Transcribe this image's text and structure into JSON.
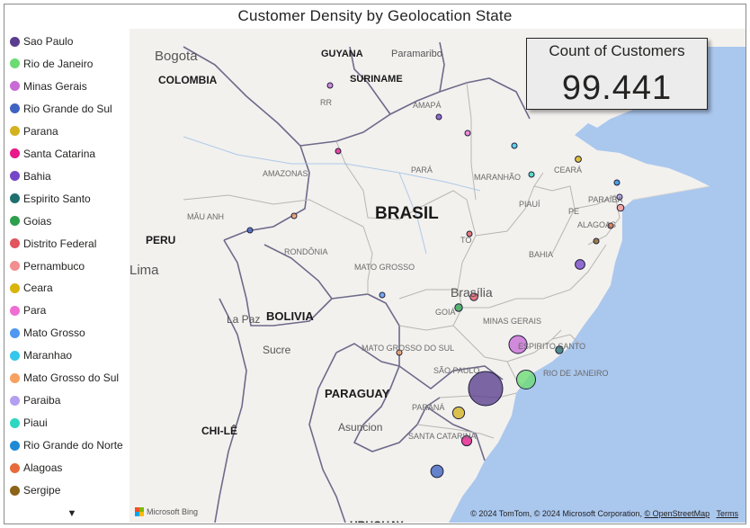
{
  "title": "Customer Density by Geolocation State",
  "kpi": {
    "label": "Count of Customers",
    "value": "99.441"
  },
  "legend": {
    "items": [
      {
        "label": "Sao Paulo",
        "color": "#5a3d8e"
      },
      {
        "label": "Rio de Janeiro",
        "color": "#6cdb73"
      },
      {
        "label": "Minas Gerais",
        "color": "#c86bd6"
      },
      {
        "label": "Rio Grande do Sul",
        "color": "#3e63c2"
      },
      {
        "label": "Parana",
        "color": "#d4b21f"
      },
      {
        "label": "Santa Catarina",
        "color": "#e8178a"
      },
      {
        "label": "Bahia",
        "color": "#7446c8"
      },
      {
        "label": "Espirito Santo",
        "color": "#1f6f6f"
      },
      {
        "label": "Goias",
        "color": "#2ca04c"
      },
      {
        "label": "Distrito Federal",
        "color": "#e2545e"
      },
      {
        "label": "Pernambuco",
        "color": "#f28e8e"
      },
      {
        "label": "Ceara",
        "color": "#d9b40a"
      },
      {
        "label": "Para",
        "color": "#ef6ed3"
      },
      {
        "label": "Mato Grosso",
        "color": "#4f97f0"
      },
      {
        "label": "Maranhao",
        "color": "#33c8eb"
      },
      {
        "label": "Mato Grosso do Sul",
        "color": "#f7a060"
      },
      {
        "label": "Paraiba",
        "color": "#b39ff0"
      },
      {
        "label": "Piaui",
        "color": "#2fd6c2"
      },
      {
        "label": "Rio Grande do Norte",
        "color": "#1e8ad6"
      },
      {
        "label": "Alagoas",
        "color": "#e86a3a"
      },
      {
        "label": "Sergipe",
        "color": "#8c6318"
      }
    ],
    "more_icon": "chevron-down-icon",
    "more_glyph": "▼"
  },
  "map_labels": {
    "countries": [
      "COLOMBIA",
      "GUYANA",
      "SURINAME",
      "BRASIL",
      "PERU",
      "BOLIVIA",
      "PARAGUAY",
      "CHI-LÊ",
      "URUGUAY"
    ],
    "cities": [
      "Bogota",
      "Paramaribo",
      "Brasília",
      "La Paz",
      "Sucre",
      "Asuncion",
      "Lima"
    ],
    "states": [
      "AMAPÁ",
      "RR",
      "AMAZONAS",
      "PARÁ",
      "MARANHÃO",
      "CEARÁ",
      "PIAUÍ",
      "PARAÍBA",
      "PE",
      "ALAGOAS",
      "MÂU ANH",
      "TO",
      "BAHIA",
      "RONDÔNIA",
      "MATO GROSSO",
      "GOIÁ",
      "MINAS GERAIS",
      "ESPIRITO SANTO",
      "RIO DE JANEIRO",
      "SÃO PAULO",
      "MATO GROSSO DO SUL",
      "PARANÁ",
      "SANTA CATARINA"
    ]
  },
  "bubbles": [
    {
      "state": "Sao Paulo",
      "color": "#5a3d8e",
      "customers": 41700
    },
    {
      "state": "Rio de Janeiro",
      "color": "#6cdb73",
      "customers": 12850
    },
    {
      "state": "Minas Gerais",
      "color": "#c86bd6",
      "customers": 11630
    },
    {
      "state": "Rio Grande do Sul",
      "color": "#3e63c2",
      "customers": 5470
    },
    {
      "state": "Parana",
      "color": "#d4b21f",
      "customers": 5040
    },
    {
      "state": "Santa Catarina",
      "color": "#e8178a",
      "customers": 3640
    },
    {
      "state": "Bahia",
      "color": "#7446c8",
      "customers": 3380
    },
    {
      "state": "Espirito Santo",
      "color": "#1f6f6f",
      "customers": 2030
    },
    {
      "state": "Goias",
      "color": "#2ca04c",
      "customers": 2020
    },
    {
      "state": "Distrito Federal",
      "color": "#e2545e",
      "customers": 2140
    },
    {
      "state": "Pernambuco",
      "color": "#f28e8e",
      "customers": 1650
    },
    {
      "state": "Ceara",
      "color": "#d9b40a",
      "customers": 1340
    },
    {
      "state": "Para",
      "color": "#ef6ed3",
      "customers": 980
    },
    {
      "state": "Mato Grosso",
      "color": "#4f97f0",
      "customers": 910
    },
    {
      "state": "Maranhao",
      "color": "#33c8eb",
      "customers": 750
    },
    {
      "state": "Mato Grosso do Sul",
      "color": "#f7a060",
      "customers": 720
    },
    {
      "state": "Paraiba",
      "color": "#b39ff0",
      "customers": 540
    },
    {
      "state": "Piaui",
      "color": "#2fd6c2",
      "customers": 500
    },
    {
      "state": "Rio Grande do Norte",
      "color": "#1e8ad6",
      "customers": 490
    },
    {
      "state": "Alagoas",
      "color": "#e86a3a",
      "customers": 410
    },
    {
      "state": "Sergipe",
      "color": "#8c6318",
      "customers": 350
    },
    {
      "state": "Tocantins",
      "color": "#e2545e",
      "customers": 280
    },
    {
      "state": "Rondonia",
      "color": "#f7a060",
      "customers": 250
    },
    {
      "state": "Amazonas",
      "color": "#3e63c2",
      "customers": 150
    },
    {
      "state": "Acre",
      "color": "#e8178a",
      "customers": 80
    },
    {
      "state": "Amapa",
      "color": "#7446c8",
      "customers": 70
    },
    {
      "state": "Roraima",
      "color": "#c86bd6",
      "customers": 46
    }
  ],
  "attribution": {
    "text": "© 2024 TomTom, © 2024 Microsoft Corporation, ",
    "osm_link": "© OpenStreetMap",
    "terms_link": "Terms",
    "brand": "Microsoft Bing"
  }
}
